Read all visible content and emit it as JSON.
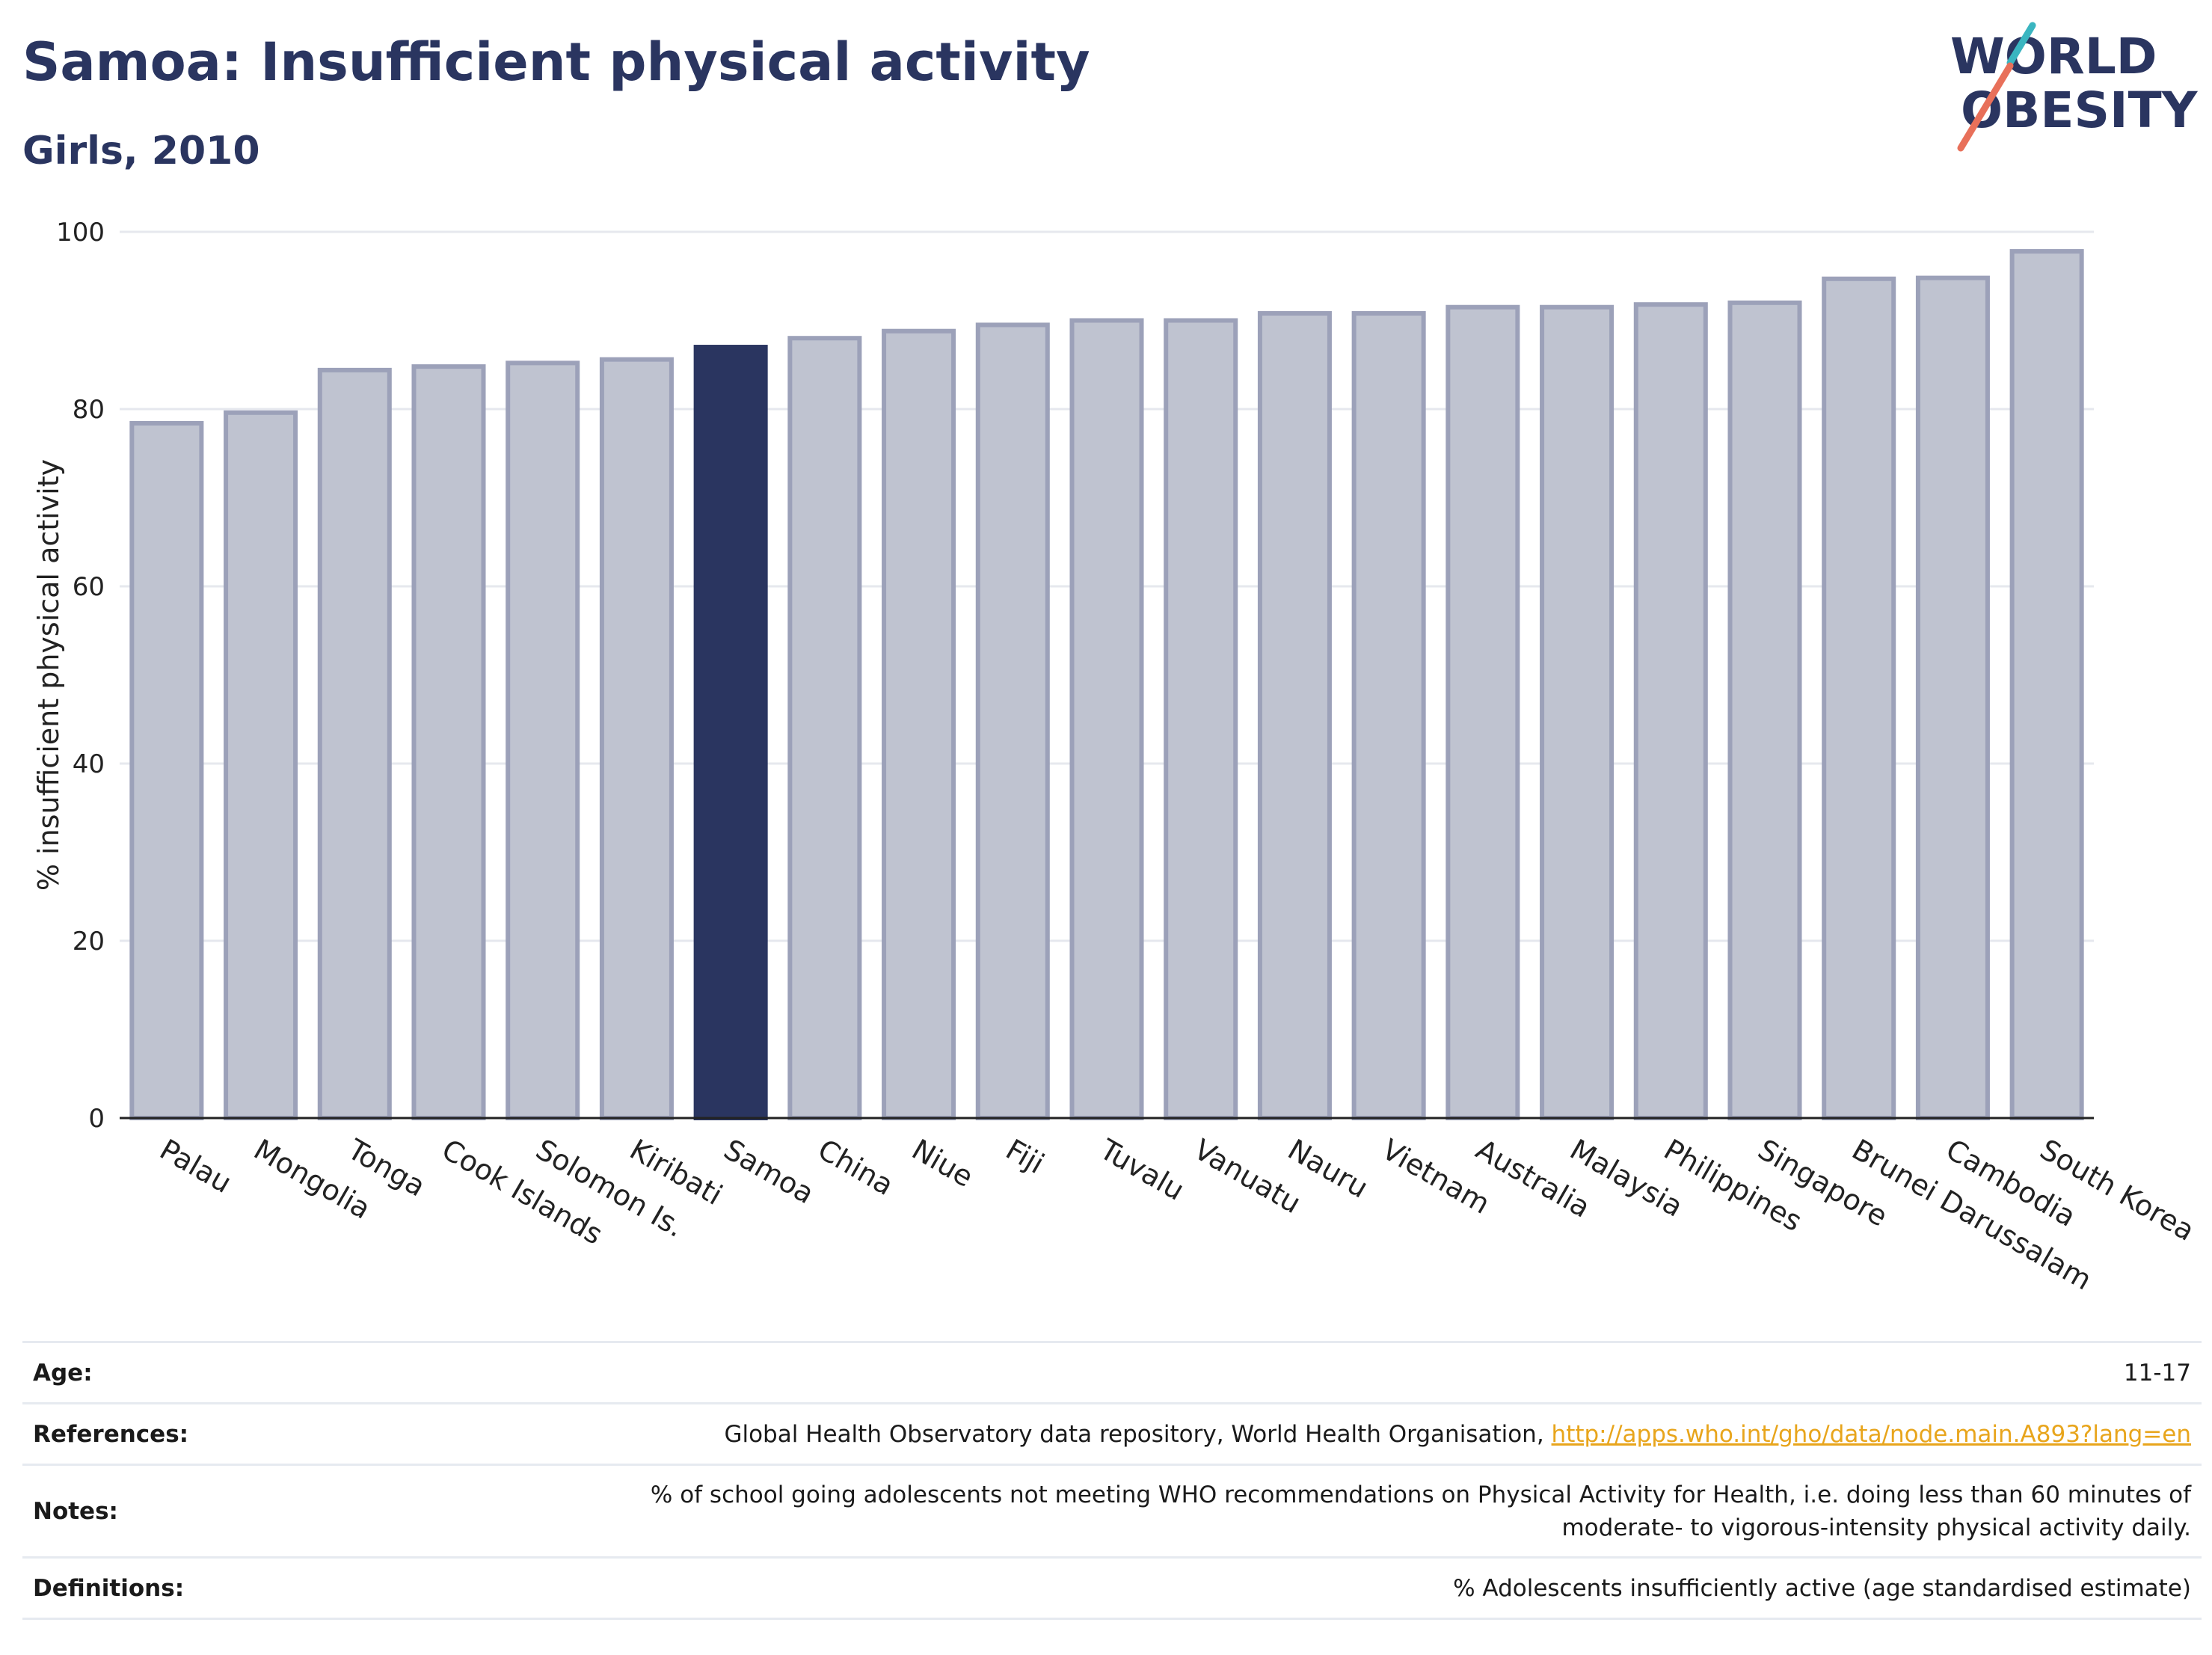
{
  "header": {
    "title": "Samoa: Insufficient physical activity",
    "subtitle": "Girls, 2010"
  },
  "logo": {
    "line1": "WORLD",
    "line2": "OBESITY",
    "slash_colors": [
      "#3ab5c0",
      "#e8705a"
    ]
  },
  "chart_data": {
    "type": "bar",
    "title": "Samoa: Insufficient physical activity",
    "subtitle": "Girls, 2010",
    "xlabel": "",
    "ylabel": "% insufficient physical activity",
    "ylim": [
      0,
      100
    ],
    "yticks": [
      "0",
      "20",
      "40",
      "60",
      "80",
      "100"
    ],
    "grid": true,
    "highlight": "Samoa",
    "colors": {
      "bar": "#bfc3d0",
      "bar_edge": "#9ca1b9",
      "highlight": "#2a3560"
    },
    "categories": [
      "Palau",
      "Mongolia",
      "Tonga",
      "Cook Islands",
      "Solomon Is.",
      "Kiribati",
      "Samoa",
      "China",
      "Niue",
      "Fiji",
      "Tuvalu",
      "Vanuatu",
      "Nauru",
      "Vietnam",
      "Australia",
      "Malaysia",
      "Philippines",
      "Singapore",
      "Brunei Darussalam",
      "Cambodia",
      "South Korea"
    ],
    "values": [
      78.4,
      79.6,
      84.4,
      84.8,
      85.2,
      85.6,
      87.0,
      88.0,
      88.8,
      89.5,
      90.0,
      90.0,
      90.8,
      90.8,
      91.5,
      91.5,
      91.8,
      92.0,
      94.7,
      94.8,
      97.8
    ]
  },
  "info": {
    "age_label": "Age:",
    "age_value": "11-17",
    "references_label": "References:",
    "references_text": "Global Health Observatory data repository, World Health Organisation, ",
    "references_link": "http://apps.who.int/gho/data/node.main.A893?lang=en",
    "notes_label": "Notes:",
    "notes_line1": "% of school going adolescents not meeting WHO recommendations on Physical Activity for Health, i.e. doing less than 60 minutes of",
    "notes_line2": "moderate- to vigorous-intensity physical activity daily.",
    "definitions_label": "Definitions:",
    "definitions_value": "% Adolescents insufficiently active (age standardised estimate)"
  }
}
